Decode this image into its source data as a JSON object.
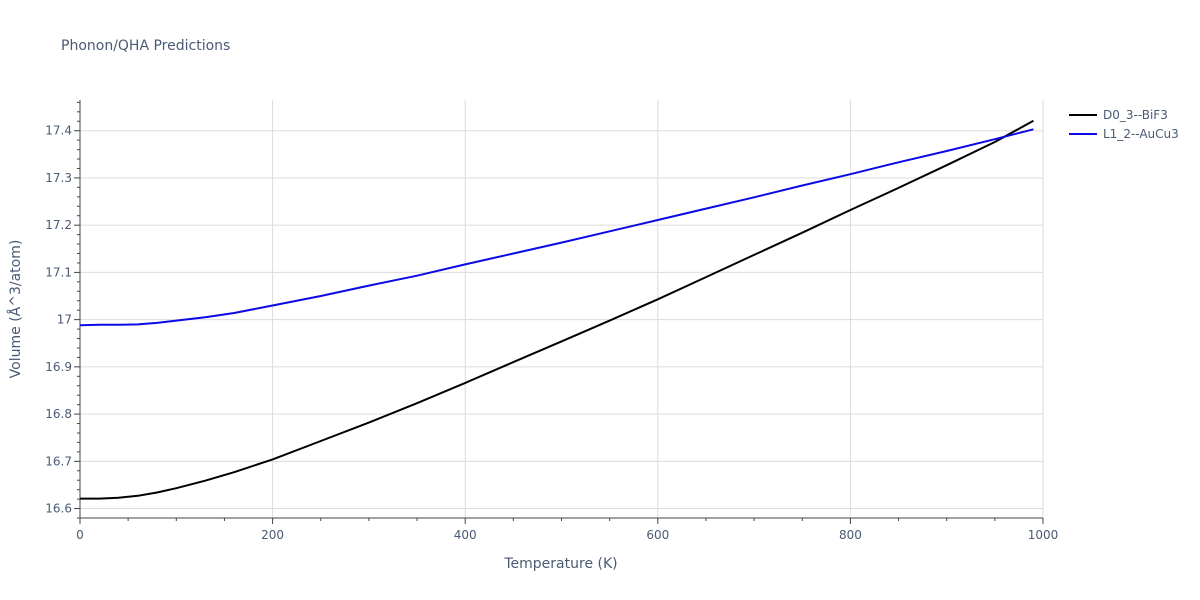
{
  "chart_data": {
    "type": "line",
    "title": "Phonon/QHA Predictions",
    "xlabel": "Temperature (K)",
    "ylabel": "Volume (Å^3/atom)",
    "xlim": [
      0,
      1000
    ],
    "ylim": [
      16.58,
      17.465
    ],
    "xticks": [
      0,
      200,
      400,
      600,
      800,
      1000
    ],
    "xtick_labels": [
      "0",
      "200",
      "400",
      "600",
      "800",
      "1000"
    ],
    "yticks": [
      16.6,
      16.7,
      16.8,
      16.9,
      17.0,
      17.1,
      17.2,
      17.3,
      17.4
    ],
    "ytick_labels": [
      "16.6",
      "16.7",
      "16.8",
      "16.9",
      "17",
      "17.1",
      "17.2",
      "17.3",
      "17.4"
    ],
    "grid": true,
    "legend_position": "top-right",
    "series": [
      {
        "name": "D0_3--BiF3",
        "color": "#000000",
        "x": [
          0,
          20,
          40,
          60,
          80,
          100,
          130,
          160,
          200,
          250,
          300,
          350,
          400,
          450,
          500,
          550,
          600,
          650,
          700,
          750,
          800,
          850,
          900,
          950,
          990
        ],
        "y": [
          16.621,
          16.621,
          16.623,
          16.627,
          16.634,
          16.643,
          16.659,
          16.677,
          16.704,
          16.743,
          16.782,
          16.823,
          16.866,
          16.91,
          16.954,
          16.998,
          17.043,
          17.09,
          17.137,
          17.184,
          17.232,
          17.279,
          17.327,
          17.376,
          17.421
        ]
      },
      {
        "name": "L1_2--AuCu3",
        "color": "#0a0ae6",
        "x": [
          0,
          20,
          40,
          60,
          80,
          100,
          130,
          160,
          200,
          250,
          300,
          350,
          400,
          450,
          500,
          550,
          600,
          650,
          700,
          750,
          800,
          850,
          900,
          950,
          990
        ],
        "y": [
          16.988,
          16.989,
          16.989,
          16.99,
          16.993,
          16.998,
          17.005,
          17.014,
          17.03,
          17.05,
          17.072,
          17.093,
          17.117,
          17.14,
          17.163,
          17.187,
          17.211,
          17.235,
          17.259,
          17.284,
          17.308,
          17.333,
          17.357,
          17.382,
          17.403
        ]
      }
    ]
  }
}
